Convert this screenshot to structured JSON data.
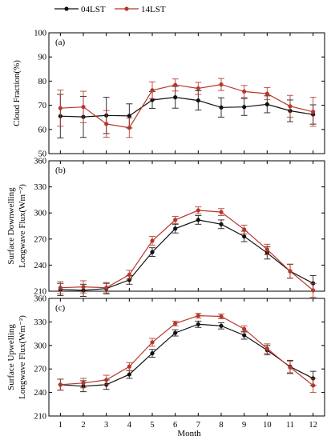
{
  "chart_data": {
    "type": "line",
    "legend": {
      "placement": "top",
      "entries": [
        {
          "label": "04LST",
          "color": "#111111"
        },
        {
          "label": "14LST",
          "color": "#b5372b"
        }
      ]
    },
    "x": [
      1,
      2,
      3,
      4,
      5,
      6,
      7,
      8,
      9,
      10,
      11,
      12
    ],
    "xlabel": "Month",
    "xlim": [
      0.5,
      12.5
    ],
    "x_ticks": [
      "1",
      "2",
      "3",
      "4",
      "5",
      "6",
      "7",
      "8",
      "9",
      "10",
      "11",
      "12"
    ],
    "grid": false,
    "panels": [
      {
        "tag": "(a)",
        "ylabel_lines": [
          "Cloud Fraction(%)"
        ],
        "ylim": [
          50,
          100
        ],
        "y_ticks": [
          "50",
          "60",
          "70",
          "80",
          "90",
          "100"
        ],
        "series": [
          {
            "name": "04LST",
            "values": [
              65.5,
              65.2,
              65.8,
              65.6,
              72.2,
              73.3,
              72.0,
              69.1,
              69.3,
              70.4,
              67.7,
              66.2
            ],
            "errors": [
              9.0,
              8.5,
              7.5,
              5.0,
              3.5,
              4.5,
              4.0,
              4.0,
              3.5,
              3.5,
              4.5,
              4.0
            ]
          },
          {
            "name": "14LST",
            "values": [
              68.8,
              69.3,
              62.3,
              60.7,
              76.2,
              78.4,
              77.0,
              78.6,
              75.7,
              74.8,
              69.6,
              67.3
            ],
            "errors": [
              7.5,
              6.5,
              5.5,
              4.0,
              3.5,
              2.5,
              2.5,
              2.5,
              2.5,
              2.5,
              4.5,
              6.0
            ]
          }
        ]
      },
      {
        "tag": "(b)",
        "ylabel_lines": [
          "Surface Downwelling",
          "Longwave Flux(Wm⁻²)"
        ],
        "ylim": [
          210,
          360
        ],
        "y_ticks": [
          "210",
          "240",
          "270",
          "300",
          "330",
          "360"
        ],
        "series": [
          {
            "name": "04LST",
            "values": [
              212,
              211,
              213,
              223,
              255,
              282,
              292,
              287,
              273,
              254,
              233,
              219
            ],
            "errors": [
              7,
              7,
              6,
              5,
              5,
              5,
              5,
              5,
              6,
              7,
              8,
              9
            ]
          },
          {
            "name": "14LST",
            "values": [
              214,
              215,
              214,
              229,
              268,
              292,
              303,
              301,
              281,
              258,
              233,
              211
            ],
            "errors": [
              7,
              7,
              6,
              5,
              5,
              4,
              4,
              4,
              5,
              6,
              8,
              8
            ]
          }
        ]
      },
      {
        "tag": "(c)",
        "ylabel_lines": [
          "Surface Upwelling",
          "Longwave Flux(Wm⁻²)"
        ],
        "ylim": [
          210,
          360
        ],
        "y_ticks": [
          "210",
          "240",
          "270",
          "300",
          "330",
          "360"
        ],
        "series": [
          {
            "name": "04LST",
            "values": [
              250,
              248,
              250,
              263,
              290,
              316,
              327,
              325,
              313,
              294,
              273,
              258
            ],
            "errors": [
              7,
              7,
              6,
              5,
              5,
              4,
              4,
              4,
              5,
              6,
              8,
              9
            ]
          },
          {
            "name": "14LST",
            "values": [
              250,
              252,
              256,
              273,
              304,
              328,
              338,
              337,
              321,
              296,
              272,
              249
            ],
            "errors": [
              7,
              6,
              6,
              5,
              5,
              3,
              3,
              3,
              4,
              6,
              8,
              9
            ]
          }
        ]
      }
    ]
  }
}
